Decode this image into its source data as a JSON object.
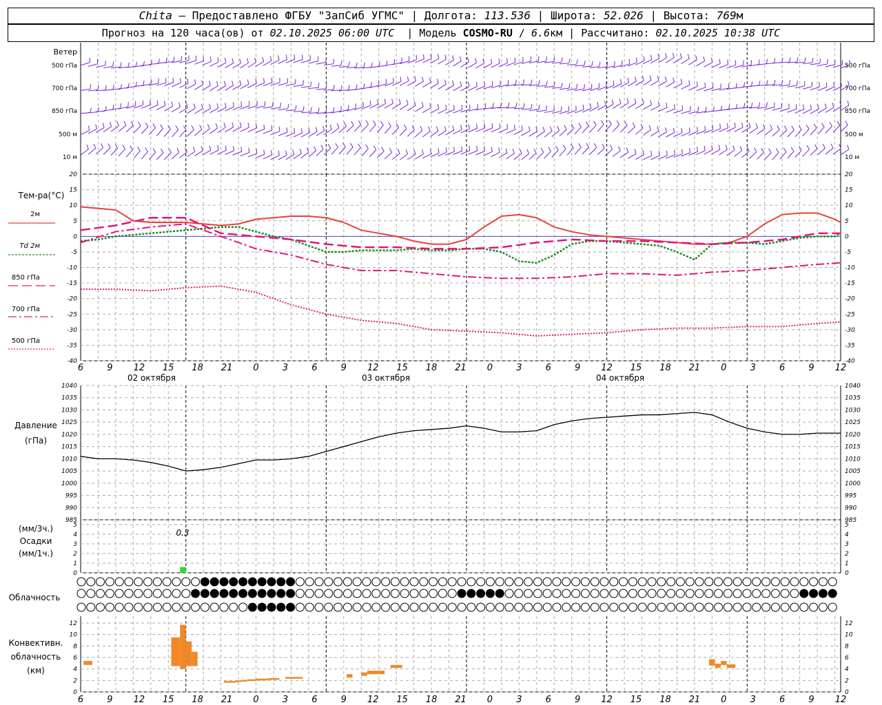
{
  "header": {
    "station": "Chita",
    "provider_text": "— Предоставлено ФГБУ \"ЗапСиб УГМС\"",
    "lon_label": "Долгота:",
    "lon_value": "113.536",
    "lat_label": "Широта:",
    "lat_value": "52.026",
    "alt_label": "Высота:",
    "alt_value": "769",
    "alt_unit": "м",
    "forecast_text": "Прогноз на 120 часа(ов) от",
    "forecast_start": "02.10.2025 06:00 UTC",
    "model_label": "Модель",
    "model_name": "COSMO-RU",
    "model_res": "6.6",
    "model_res_unit": "км",
    "computed_label": "Рассчитано:",
    "computed_value": "02.10.2025 10:38 UTC"
  },
  "colors": {
    "wind": "#7a1fd6",
    "t2m": "#e8403a",
    "td2m": "#1e8a1e",
    "t850": "#e0157a",
    "precip": "#2adb2a",
    "convective": "#f0882a",
    "pressure": "#000000",
    "grid": "#aaaaaa"
  },
  "time_axis": {
    "hour_labels": [
      "6",
      "9",
      "12",
      "15",
      "18",
      "21",
      "0",
      "3",
      "6",
      "9",
      "12",
      "15",
      "18",
      "21",
      "0",
      "3",
      "6",
      "9",
      "12",
      "15",
      "18",
      "21",
      "0",
      "3",
      "6",
      "9",
      "12"
    ],
    "date_labels": [
      "02 октября",
      "03 октября",
      "04 октября"
    ]
  },
  "wind_panel": {
    "title": "Ветер",
    "levels": [
      "500 гПа",
      "700 гПа",
      "850 гПа",
      "500 м",
      "10  м"
    ]
  },
  "temperature_panel": {
    "title": "Тем-ра(°C)",
    "legend": [
      {
        "label": "2м",
        "style": "solid"
      },
      {
        "label": "Td  2м",
        "style": "dotted"
      },
      {
        "label": "850 гПа",
        "style": "dashed"
      },
      {
        "label": "700 гПа",
        "style": "dashdot"
      },
      {
        "label": "500 гПа",
        "style": "finedot"
      }
    ],
    "y_ticks": [
      "20",
      "15",
      "10",
      "5",
      "0",
      "-5",
      "-10",
      "-15",
      "-20",
      "-25",
      "-30",
      "-35",
      "-40"
    ]
  },
  "pressure_panel": {
    "title": "Давление",
    "unit": "(гПа)",
    "y_ticks": [
      "1040",
      "1035",
      "1030",
      "1025",
      "1020",
      "1015",
      "1010",
      "1005",
      "1000",
      "995",
      "990",
      "985"
    ]
  },
  "precip_panel": {
    "label_3h": "(мм/3ч.)",
    "title": "Осадки",
    "label_1h": "(мм/1ч.)",
    "y_ticks": [
      "5",
      "4",
      "3",
      "2",
      "1",
      "0"
    ],
    "annotation": "0.3"
  },
  "cloud_panel": {
    "title": "Облачность"
  },
  "convective_panel": {
    "title_line1": "Конвективн.",
    "title_line2": "облачность",
    "title_line3": "(км)",
    "y_ticks": [
      "12",
      "10",
      "8",
      "6",
      "4",
      "2",
      "0"
    ]
  },
  "chart_data": [
    {
      "type": "line",
      "title": "Тем-ра(°C)",
      "x_unit": "hours since 02.10.2025 06:00 UTC",
      "ylim": [
        -40,
        20
      ],
      "series": [
        {
          "name": "2м",
          "x": [
            0,
            3,
            6,
            9,
            12,
            15,
            18,
            21,
            24,
            27,
            30,
            33,
            36,
            39,
            42,
            45,
            48,
            51,
            54,
            57,
            60,
            63,
            66,
            69,
            72,
            75,
            78,
            81,
            84,
            87,
            90,
            93,
            96,
            99,
            102,
            105,
            108,
            111,
            114,
            117,
            120,
            123,
            126,
            129,
            130
          ],
          "values": [
            9.5,
            9,
            8.5,
            5,
            4.5,
            4.5,
            4.5,
            4,
            3.5,
            4,
            5.5,
            6,
            6.5,
            6.5,
            6,
            4.5,
            2,
            1,
            0,
            -1.5,
            -2.5,
            -2.5,
            -1,
            3,
            6.5,
            7,
            6,
            3,
            1.5,
            0.5,
            0,
            -0.5,
            -1,
            -1.5,
            -2,
            -2.5,
            -2.5,
            -2,
            0,
            4,
            7,
            7.5,
            7.5,
            5.5,
            4.5
          ]
        },
        {
          "name": "Td  2м",
          "x": [
            0,
            3,
            6,
            9,
            12,
            15,
            18,
            21,
            24,
            27,
            30,
            33,
            36,
            39,
            42,
            45,
            48,
            51,
            54,
            57,
            60,
            63,
            66,
            69,
            72,
            75,
            78,
            81,
            84,
            87,
            90,
            93,
            96,
            99,
            102,
            105,
            108,
            111,
            114,
            117,
            120,
            123,
            126,
            129,
            130
          ],
          "values": [
            -1.5,
            -1,
            0,
            0.5,
            1,
            1.5,
            2,
            2.5,
            3,
            3,
            1.5,
            0,
            -1,
            -3,
            -5,
            -5,
            -4.5,
            -4.5,
            -4.5,
            -4,
            -4.5,
            -4.5,
            -4,
            -4,
            -5,
            -8,
            -8.5,
            -6,
            -2.5,
            -1.5,
            -1.5,
            -2,
            -2.5,
            -3,
            -5,
            -7.5,
            -2.5,
            -2,
            -2,
            -2.5,
            -1.5,
            -0.5,
            0,
            0,
            1
          ]
        },
        {
          "name": "850 гПа",
          "x": [
            0,
            6,
            12,
            18,
            24,
            30,
            36,
            42,
            48,
            54,
            60,
            66,
            72,
            78,
            84,
            90,
            96,
            102,
            108,
            114,
            120,
            126,
            130
          ],
          "values": [
            2,
            3.5,
            6,
            6,
            1,
            0,
            -1,
            -2.5,
            -3.5,
            -3.5,
            -4,
            -4,
            -3.5,
            -2,
            -1,
            -1.5,
            -1.5,
            -2,
            -2.5,
            -2,
            -1,
            1,
            1
          ]
        },
        {
          "name": "700 гПа",
          "x": [
            0,
            6,
            12,
            18,
            24,
            30,
            36,
            42,
            48,
            54,
            60,
            66,
            72,
            78,
            84,
            90,
            96,
            102,
            108,
            114,
            120,
            126,
            130
          ],
          "values": [
            -2,
            1.5,
            3,
            4,
            0,
            -4,
            -6,
            -9,
            -11,
            -11,
            -12,
            -13,
            -13.5,
            -13.5,
            -13,
            -12,
            -12,
            -12.5,
            -11.5,
            -11,
            -10,
            -9,
            -8.5
          ]
        },
        {
          "name": "500 гПа",
          "x": [
            0,
            6,
            12,
            18,
            24,
            30,
            36,
            42,
            48,
            54,
            60,
            66,
            72,
            78,
            84,
            90,
            96,
            102,
            108,
            114,
            120,
            126,
            130
          ],
          "values": [
            -17,
            -17,
            -17.5,
            -16.5,
            -16,
            -18,
            -22,
            -25,
            -27,
            -28,
            -30,
            -30.5,
            -31,
            -32,
            -31.5,
            -31,
            -30,
            -29.5,
            -29.5,
            -29,
            -29,
            -28,
            -27.5
          ]
        }
      ]
    },
    {
      "type": "line",
      "title": "Давление",
      "ylabel": "(гПа)",
      "x_unit": "hours since 02.10.2025 06:00 UTC",
      "ylim": [
        985,
        1040
      ],
      "series": [
        {
          "name": "",
          "x": [
            0,
            3,
            6,
            9,
            12,
            15,
            18,
            21,
            24,
            27,
            30,
            33,
            36,
            39,
            42,
            45,
            48,
            51,
            54,
            57,
            60,
            63,
            66,
            69,
            72,
            75,
            78,
            81,
            84,
            87,
            90,
            93,
            96,
            99,
            102,
            105,
            108,
            111,
            114,
            117,
            120,
            123,
            126,
            129,
            130
          ],
          "values": [
            1011,
            1010,
            1010,
            1009.5,
            1008.5,
            1007,
            1005,
            1005.5,
            1006.5,
            1008,
            1009.5,
            1009.5,
            1010,
            1011,
            1013,
            1015,
            1017,
            1019,
            1020.5,
            1021.5,
            1022,
            1022.5,
            1023.5,
            1022.5,
            1021,
            1021,
            1021.5,
            1024,
            1025.5,
            1026.5,
            1027,
            1027.5,
            1028,
            1028,
            1028.5,
            1029,
            1028,
            1025,
            1022.5,
            1021,
            1020,
            1020,
            1020.5,
            1020.5,
            1020.5
          ]
        }
      ]
    },
    {
      "type": "bar",
      "title": "Осадки",
      "ylabel": "(мм/1ч.)",
      "ylim": [
        0,
        5
      ],
      "bars": [
        {
          "x_start": 17,
          "x_end": 18,
          "value": 0.3
        }
      ]
    },
    {
      "type": "bar",
      "title": "Конвективн. облачность",
      "ylabel": "(км)",
      "ylim": [
        0,
        12
      ],
      "bars": [
        {
          "x_start": 0.5,
          "x_end": 2,
          "bottom": 4.7,
          "top": 5.4
        },
        {
          "x_start": 15.5,
          "x_end": 17,
          "bottom": 4.5,
          "top": 9.5
        },
        {
          "x_start": 17,
          "x_end": 18,
          "bottom": 4.0,
          "top": 11.7
        },
        {
          "x_start": 18,
          "x_end": 19,
          "bottom": 4.5,
          "top": 8.8
        },
        {
          "x_start": 19,
          "x_end": 20,
          "bottom": 4.5,
          "top": 7.0
        },
        {
          "x_start": 24.5,
          "x_end": 26.5,
          "bottom": 1.6,
          "top": 1.9
        },
        {
          "x_start": 26.5,
          "x_end": 27.5,
          "bottom": 1.7,
          "top": 2.0
        },
        {
          "x_start": 27.5,
          "x_end": 28.5,
          "bottom": 1.8,
          "top": 2.1
        },
        {
          "x_start": 28.5,
          "x_end": 30,
          "bottom": 1.9,
          "top": 2.2
        },
        {
          "x_start": 30,
          "x_end": 32,
          "bottom": 2.0,
          "top": 2.3
        },
        {
          "x_start": 32,
          "x_end": 34,
          "bottom": 2.1,
          "top": 2.4
        },
        {
          "x_start": 35,
          "x_end": 38,
          "bottom": 2.3,
          "top": 2.6
        },
        {
          "x_start": 45.5,
          "x_end": 46.5,
          "bottom": 2.5,
          "top": 3.1
        },
        {
          "x_start": 48,
          "x_end": 49,
          "bottom": 2.8,
          "top": 3.4
        },
        {
          "x_start": 49,
          "x_end": 52,
          "bottom": 3.1,
          "top": 3.7
        },
        {
          "x_start": 53,
          "x_end": 55,
          "bottom": 4.2,
          "top": 4.7
        },
        {
          "x_start": 107.5,
          "x_end": 108.5,
          "bottom": 4.6,
          "top": 5.7
        },
        {
          "x_start": 108.5,
          "x_end": 109.5,
          "bottom": 4.2,
          "top": 4.9
        },
        {
          "x_start": 109.5,
          "x_end": 110.5,
          "bottom": 4.7,
          "top": 5.4
        },
        {
          "x_start": 110.5,
          "x_end": 112,
          "bottom": 4.2,
          "top": 4.8
        }
      ]
    }
  ]
}
